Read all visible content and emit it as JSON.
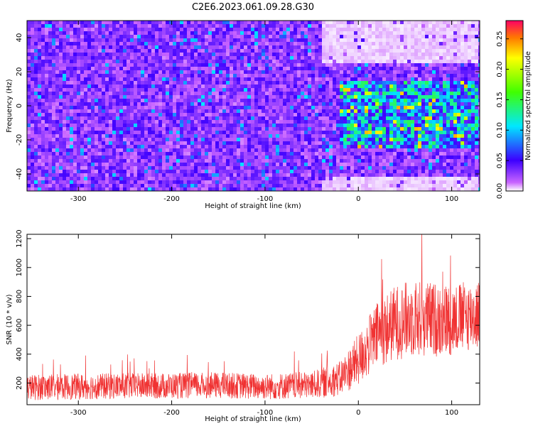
{
  "title": "C2E6.2023.061.09.28.G30",
  "chart_data": [
    {
      "type": "heatmap",
      "title": "",
      "xlabel": "Height of straight line (km)",
      "ylabel": "Frequency (Hz)",
      "xlim": [
        -355,
        130
      ],
      "ylim": [
        -50,
        50
      ],
      "xticks": [
        -300,
        -200,
        -100,
        0,
        100
      ],
      "xtick_labels": [
        "-300",
        "-200",
        "-100",
        "0",
        "100"
      ],
      "yticks": [
        -40,
        -20,
        0,
        20,
        40
      ],
      "ytick_labels": [
        "-40",
        "-20",
        "0",
        "20",
        "40"
      ],
      "colorbar": {
        "label": "Normalized spectral amplitude",
        "range": [
          0,
          0.28
        ],
        "ticks": [
          0,
          0.05,
          0.1,
          0.15,
          0.2,
          0.25
        ],
        "tick_labels": [
          "0.00",
          "0.05",
          "0.10",
          "0.15",
          "0.20",
          "0.25"
        ]
      },
      "regions": [
        {
          "x": [
            -355,
            -40
          ],
          "y": [
            -50,
            50
          ],
          "level": 0.03
        },
        {
          "x": [
            -20,
            130
          ],
          "y": [
            -25,
            15
          ],
          "level": 0.09
        },
        {
          "x": [
            -40,
            130
          ],
          "y": [
            25,
            50
          ],
          "level": 0.005
        },
        {
          "x": [
            -40,
            130
          ],
          "y": [
            -50,
            -42
          ],
          "level": 0.005
        }
      ]
    },
    {
      "type": "line",
      "title": "",
      "xlabel": "Height of straight line (km)",
      "ylabel": "SNR (10 * v/v)",
      "xlim": [
        -355,
        130
      ],
      "ylim": [
        50,
        1230
      ],
      "xticks": [
        -300,
        -200,
        -100,
        0,
        100
      ],
      "xtick_labels": [
        "-300",
        "-200",
        "-100",
        "0",
        "100"
      ],
      "yticks": [
        200,
        400,
        600,
        800,
        1000,
        1200
      ],
      "ytick_labels": [
        "200",
        "400",
        "600",
        "800",
        "1000",
        "1200"
      ],
      "series": [
        {
          "color": "#f03232",
          "x": [
            -355,
            -300,
            -250,
            -200,
            -150,
            -100,
            -50,
            -20,
            0,
            20,
            40,
            60,
            80,
            100,
            130
          ],
          "mean": [
            170,
            175,
            180,
            180,
            185,
            175,
            185,
            230,
            360,
            530,
            620,
            650,
            640,
            640,
            680
          ],
          "spread": [
            90,
            90,
            90,
            90,
            90,
            90,
            95,
            120,
            180,
            230,
            260,
            270,
            260,
            250,
            240
          ]
        }
      ]
    }
  ]
}
